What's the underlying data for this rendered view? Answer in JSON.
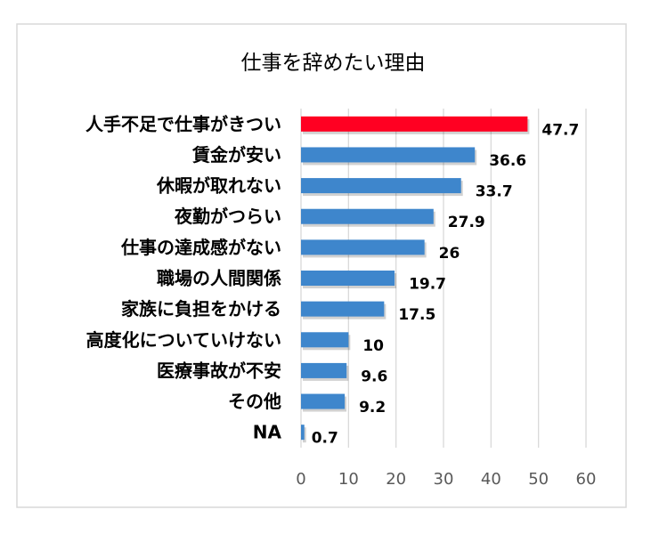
{
  "chart_data": {
    "type": "bar",
    "orientation": "horizontal",
    "title": "仕事を辞めたい理由",
    "categories": [
      "人手不足で仕事がきつい",
      "賃金が安い",
      "休暇が取れない",
      "夜勤がつらい",
      "仕事の達成感がない",
      "職場の人間関係",
      "家族に負担をかける",
      "高度化についていけない",
      "医療事故が不安",
      "その他",
      "NA"
    ],
    "values": [
      47.7,
      36.6,
      33.7,
      27.9,
      26,
      19.7,
      17.5,
      10,
      9.6,
      9.2,
      0.7
    ],
    "value_labels": [
      "47.7",
      "36.6",
      "33.7",
      "27.9",
      "26",
      "19.7",
      "17.5",
      "10",
      "9.6",
      "9.2",
      "0.7"
    ],
    "xlim": [
      0,
      60
    ],
    "xticks": [
      "0",
      "10",
      "20",
      "30",
      "40",
      "50",
      "60"
    ],
    "grid": "vertical",
    "highlight_index": 0,
    "colors": {
      "highlight": "#ff0022",
      "bar": "#3e86cc",
      "grid": "#d9d9d9",
      "border": "#d9d9d9"
    }
  }
}
